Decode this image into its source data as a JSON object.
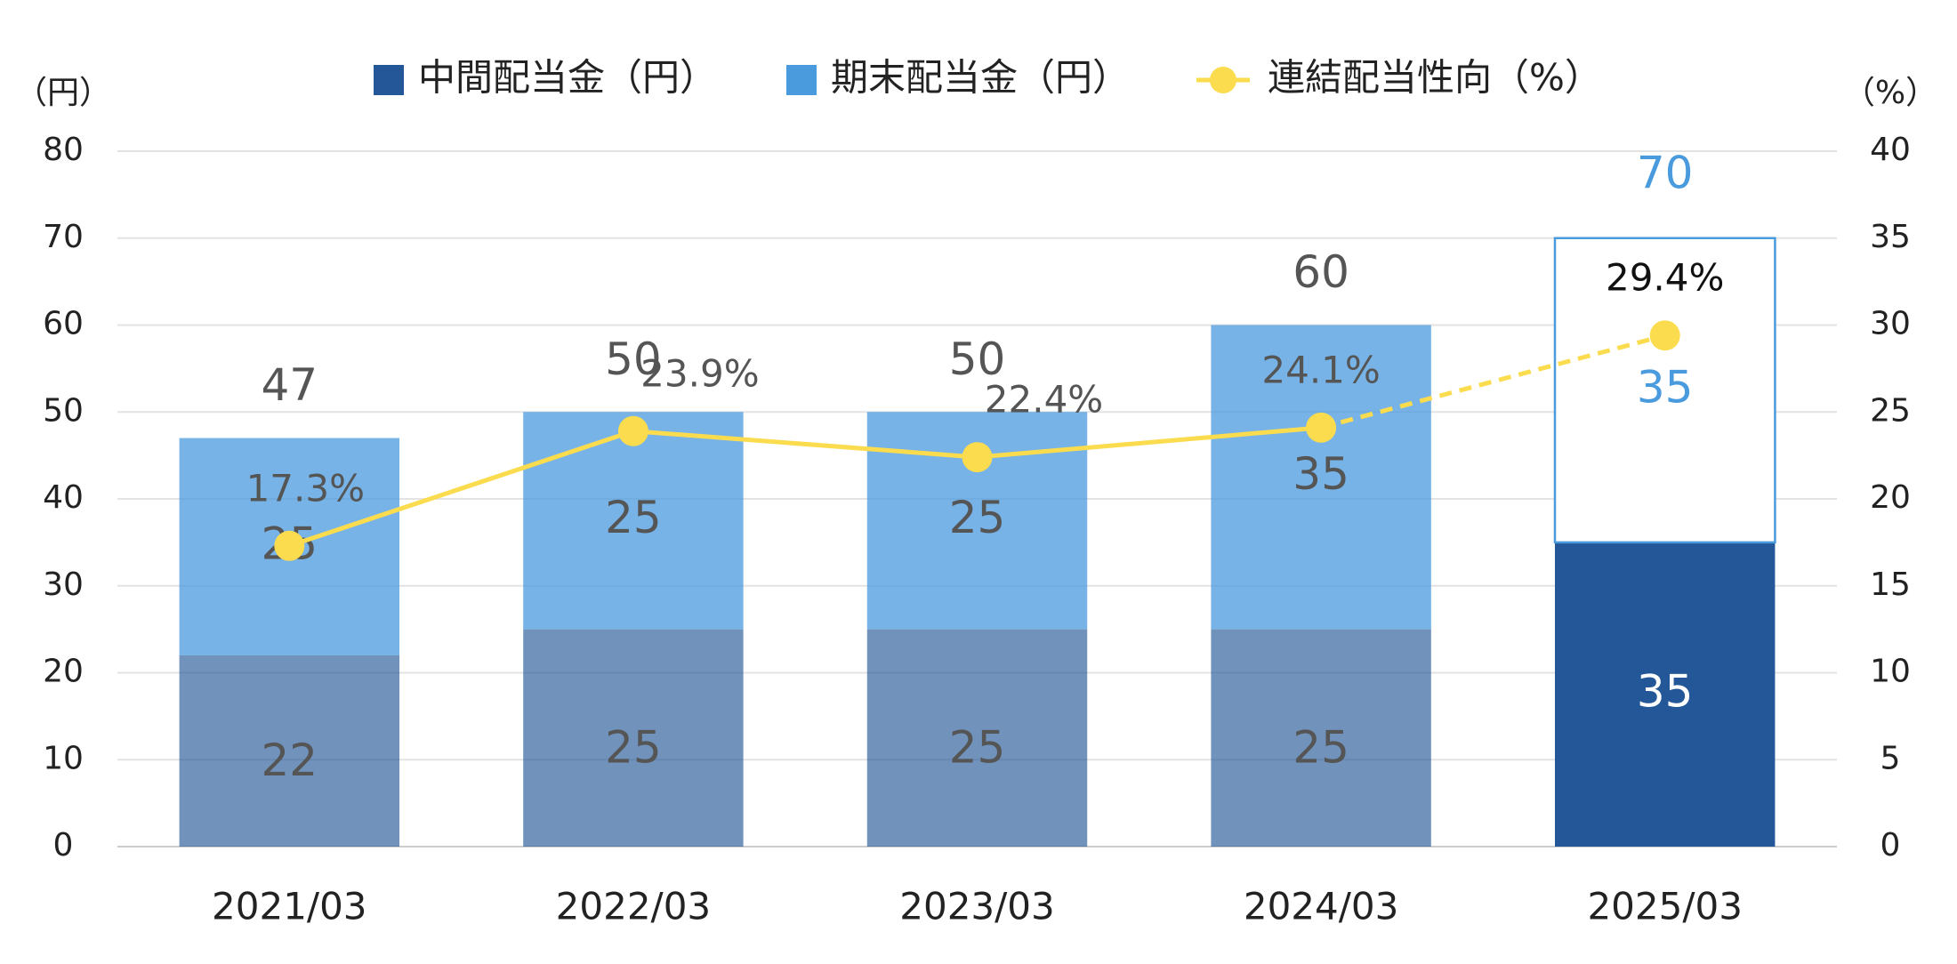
{
  "chart_data": {
    "type": "bar",
    "y_label": "（円）",
    "y2_label": "（%）",
    "categories": [
      "2021/03",
      "2022/03",
      "2023/03",
      "2024/03",
      "2025/03"
    ],
    "series": [
      {
        "name": "中間配当金（円）",
        "color": "#245797",
        "values": [
          22,
          25,
          25,
          25,
          35
        ]
      },
      {
        "name": "期末配当金（円）",
        "color": "#4a9ade",
        "values": [
          25,
          25,
          25,
          35,
          35
        ]
      },
      {
        "name": "連結配当性向（%）",
        "type": "line",
        "axis": "y2",
        "color": "#fbdc4e",
        "values": [
          17.3,
          23.9,
          22.4,
          24.1,
          29.4
        ],
        "value_labels": [
          "17.3%",
          "23.9%",
          "22.4%",
          "24.1%",
          "29.4%"
        ]
      }
    ],
    "totals": [
      47,
      50,
      50,
      60,
      70
    ],
    "forecast": [
      false,
      false,
      false,
      false,
      true
    ],
    "ylim": [
      0,
      80
    ],
    "yticks": [
      0,
      10,
      20,
      30,
      40,
      50,
      60,
      70,
      80
    ],
    "y2lim": [
      0,
      40
    ],
    "y2ticks": [
      0,
      5,
      10,
      15,
      20,
      25,
      30,
      35,
      40
    ],
    "grid": true,
    "legend": "top"
  }
}
